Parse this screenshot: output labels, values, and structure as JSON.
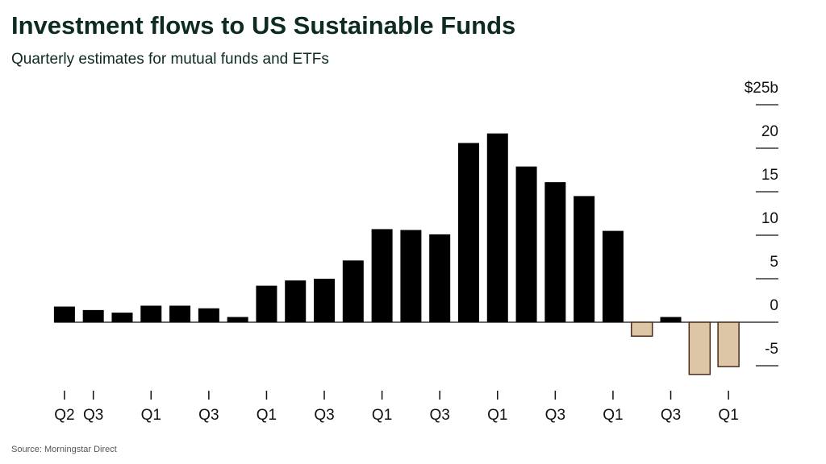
{
  "chart_data": {
    "type": "bar",
    "title": "Investment flows to US Sustainable Funds",
    "subtitle": "Quarterly estimates for mutual funds and ETFs",
    "source": "Source: Morningstar Direct",
    "categories": [
      "Q2",
      "Q3",
      null,
      "Q1",
      null,
      "Q3",
      null,
      "Q1",
      null,
      "Q3",
      null,
      "Q1",
      null,
      "Q3",
      null,
      "Q1",
      null,
      "Q3",
      null,
      "Q1",
      null,
      "Q3",
      null,
      "Q1"
    ],
    "values": [
      1.8,
      1.4,
      1.1,
      1.9,
      1.9,
      1.6,
      0.6,
      4.2,
      4.8,
      5.0,
      7.1,
      10.7,
      10.6,
      10.1,
      20.6,
      21.7,
      17.9,
      16.1,
      14.5,
      10.5,
      -1.6,
      0.6,
      -6.0,
      -5.1
    ],
    "color": "#000000",
    "negative_color": "#dcc6a5",
    "negative_outline": "#4a2a1a",
    "ylim": [
      -8,
      25
    ],
    "yticks": [
      {
        "value": 25,
        "label": "$25b"
      },
      20,
      15,
      10,
      5,
      0,
      -5
    ]
  }
}
